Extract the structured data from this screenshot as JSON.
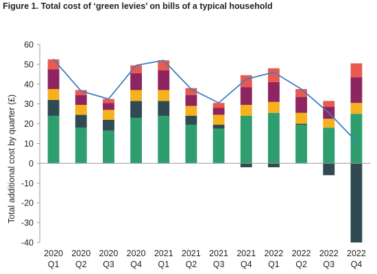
{
  "figure_title": "Figure 1. Total cost of ‘green levies’ on bills of a typical household",
  "chart_data": {
    "type": "bar",
    "stacked": true,
    "ylabel": "Total additional cost by quarter (£)",
    "ylim": [
      -40,
      60
    ],
    "yticks": [
      -40,
      -30,
      -20,
      -10,
      0,
      10,
      20,
      30,
      40,
      50,
      60
    ],
    "categories": [
      [
        "2020",
        "Q1"
      ],
      [
        "2020",
        "Q2"
      ],
      [
        "2020",
        "Q3"
      ],
      [
        "2020",
        "Q4"
      ],
      [
        "2021",
        "Q1"
      ],
      [
        "2021",
        "Q2"
      ],
      [
        "2021",
        "Q3"
      ],
      [
        "2021",
        "Q4"
      ],
      [
        "2022",
        "Q1"
      ],
      [
        "2022",
        "Q2"
      ],
      [
        "2022",
        "Q3"
      ],
      [
        "2022",
        "Q4"
      ]
    ],
    "series": [
      {
        "color": "#2e9e6e",
        "values": [
          24,
          18,
          16.5,
          23,
          24,
          19.5,
          17.5,
          24,
          25.5,
          19.5,
          18,
          25
        ]
      },
      {
        "color": "#2f4a52",
        "values": [
          8,
          6.5,
          5.5,
          8.5,
          7.5,
          4.5,
          2,
          -2,
          -2,
          0.5,
          -6,
          -40
        ]
      },
      {
        "color": "#f6b21c",
        "values": [
          5.5,
          5,
          5,
          5.5,
          5.5,
          5,
          5,
          5.5,
          5.5,
          5.5,
          4.5,
          5.5
        ]
      },
      {
        "color": "#8e2460",
        "values": [
          10,
          5,
          3.5,
          8.5,
          10,
          5.5,
          3.5,
          9,
          10,
          8,
          6,
          13
        ]
      },
      {
        "color": "#e85a4f",
        "values": [
          5,
          2.5,
          2,
          4,
          5,
          3.5,
          2.5,
          6,
          7,
          4,
          3,
          7
        ]
      }
    ],
    "line": {
      "color": "#3a7ec2",
      "values": [
        52.5,
        36.5,
        32.5,
        49.5,
        52,
        37.5,
        30.5,
        42.5,
        46,
        37.5,
        25.5,
        11
      ]
    },
    "grid": false
  }
}
